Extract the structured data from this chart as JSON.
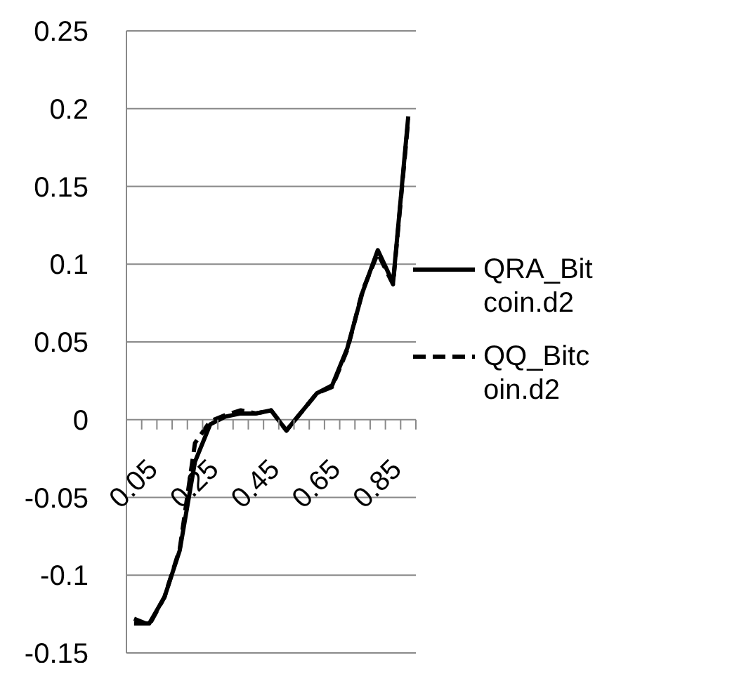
{
  "chart_data": {
    "type": "line",
    "categories": [
      "0.05",
      null,
      null,
      null,
      "0.25",
      null,
      null,
      null,
      "0.45",
      null,
      null,
      null,
      "0.65",
      null,
      null,
      null,
      "0.85",
      null,
      null
    ],
    "series": [
      {
        "name": "QRA_Bitcoin.d2",
        "color": "#000000",
        "line_style": "solid",
        "values": [
          -0.131,
          -0.131,
          -0.114,
          -0.084,
          -0.027,
          -0.003,
          0.002,
          0.004,
          0.004,
          0.006,
          -0.007,
          0.005,
          0.017,
          0.022,
          0.046,
          0.082,
          0.109,
          0.088,
          0.195
        ]
      },
      {
        "name": "QQ_Bitcoin.d2",
        "color": "#000000",
        "line_style": "dashed",
        "values": [
          -0.128,
          -0.132,
          -0.114,
          -0.083,
          -0.015,
          -0.001,
          0.003,
          0.006,
          0.004,
          0.006,
          -0.007,
          0.005,
          0.017,
          0.021,
          0.045,
          0.083,
          0.107,
          0.087,
          0.193
        ]
      }
    ],
    "ylim": [
      -0.15,
      0.25
    ],
    "yticks": [
      -0.15,
      -0.1,
      -0.05,
      0,
      0.05,
      0.1,
      0.15,
      0.2,
      0.25
    ],
    "grid": "y",
    "legend": "right",
    "marker": "none"
  }
}
